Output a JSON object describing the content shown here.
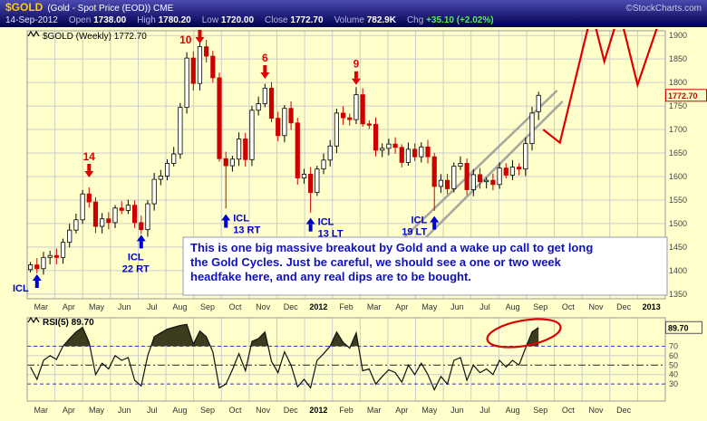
{
  "header": {
    "symbol": "$GOLD",
    "description": "(Gold - Spot Price (EOD)) CME",
    "credit": "©StockCharts.com",
    "date": "14-Sep-2012",
    "quote": [
      {
        "label": "Open",
        "value": "1738.00"
      },
      {
        "label": "High",
        "value": "1780.20"
      },
      {
        "label": "Low",
        "value": "1720.00"
      },
      {
        "label": "Close",
        "value": "1772.70"
      },
      {
        "label": "Volume",
        "value": "782.9K"
      },
      {
        "label": "Chg",
        "value": "+35.10 (+2.02%)"
      }
    ]
  },
  "price_panel": {
    "series_label": "$GOLD (Weekly) 1772.70",
    "last_price_label": "1772.70",
    "icl_corner_label": "ICL",
    "annotation_lines": [
      "This is one big massive breakout by Gold and a wake up call to get long",
      "the Gold Cycles.  Just be careful, we should see a one or two week",
      "headfake here, and any real dips are to be bought."
    ],
    "cycle_tops": [
      {
        "text": "14",
        "week": 9,
        "tip": 1598
      },
      {
        "text": "10",
        "week": 26,
        "tip": 1902,
        "label_pos": "left"
      },
      {
        "text": "6",
        "week": 36,
        "tip": 1808
      },
      {
        "text": "9",
        "week": 50,
        "tip": 1795
      }
    ],
    "cycle_bottoms": [
      {
        "lines": [
          "ICL",
          "22 RT"
        ],
        "week": 17,
        "tip": 1476,
        "label_pos": "below"
      },
      {
        "lines": [
          "ICL",
          "13 RT"
        ],
        "week": 30,
        "tip": 1520,
        "label_pos": "right"
      },
      {
        "lines": [
          "ICL",
          "13 LT"
        ],
        "week": 43,
        "tip": 1512,
        "label_pos": "right"
      },
      {
        "lines": [
          "ICL",
          "19 LT"
        ],
        "week": 62,
        "tip": 1516,
        "label_pos": "left"
      },
      {
        "lines": [],
        "week": 1,
        "tip": 1392,
        "label_pos": "none"
      }
    ]
  },
  "rsi_panel": {
    "label": "RSI(5) 89.70",
    "last_value_label": "89.70"
  },
  "chart_data": {
    "type": "candlestick",
    "title": "$GOLD (Weekly)",
    "symbol": "$GOLD",
    "timeframe": "Weekly",
    "last_close": 1772.7,
    "ohlc_last": {
      "date": "14-Sep-2012",
      "open": 1738.0,
      "high": 1780.2,
      "low": 1720.0,
      "close": 1772.7,
      "volume": "782.9K",
      "change": "+35.10 (+2.02%)"
    },
    "ylim": [
      1340,
      1910
    ],
    "yticks": [
      1350,
      1400,
      1450,
      1500,
      1550,
      1600,
      1650,
      1700,
      1750,
      1800,
      1850,
      1900
    ],
    "x_axis_months": [
      "Mar",
      "Apr",
      "May",
      "Jun",
      "Jul",
      "Aug",
      "Sep",
      "Oct",
      "Nov",
      "Dec",
      "2012",
      "Feb",
      "Mar",
      "Apr",
      "May",
      "Jun",
      "Jul",
      "Aug",
      "Sep",
      "Oct",
      "Nov",
      "Dec",
      "2013"
    ],
    "weekly_closes": [
      1412,
      1404,
      1428,
      1432,
      1428,
      1460,
      1486,
      1508,
      1563,
      1546,
      1494,
      1510,
      1502,
      1533,
      1528,
      1539,
      1502,
      1487,
      1542,
      1594,
      1601,
      1628,
      1648,
      1747,
      1852,
      1798,
      1876,
      1856,
      1810,
      1638,
      1623,
      1637,
      1680,
      1636,
      1741,
      1755,
      1788,
      1724,
      1687,
      1745,
      1714,
      1597,
      1605,
      1566,
      1616,
      1635,
      1665,
      1735,
      1725,
      1721,
      1774,
      1712,
      1711,
      1656,
      1660,
      1669,
      1662,
      1630,
      1658,
      1642,
      1663,
      1642,
      1579,
      1592,
      1574,
      1622,
      1628,
      1572,
      1604,
      1589,
      1592,
      1583,
      1618,
      1603,
      1620,
      1616,
      1670,
      1735,
      1772.7
    ],
    "candle_overrides": {
      "9": {
        "high": 1577
      },
      "17": {
        "low": 1478
      },
      "26": {
        "high": 1908
      },
      "30": {
        "low": 1532
      },
      "43": {
        "low": 1523
      },
      "50": {
        "high": 1790
      },
      "62": {
        "low": 1527
      },
      "78": {
        "open": 1738.0,
        "high": 1780.2,
        "low": 1720.0,
        "close": 1772.7
      }
    },
    "projection_red_line": [
      [
        18.6,
        1700
      ],
      [
        19.2,
        1672
      ],
      [
        20.35,
        1950
      ],
      [
        20.8,
        1845
      ],
      [
        21.35,
        1950
      ],
      [
        22.0,
        1795
      ],
      [
        23.3,
        2020
      ]
    ],
    "trend_channel": [
      [
        [
          12.7,
          1420
        ],
        [
          19.1,
          1783
        ]
      ],
      [
        [
          13.0,
          1390
        ],
        [
          19.3,
          1760
        ]
      ]
    ],
    "rsi": {
      "label": "RSI(5)",
      "period": 5,
      "last": 89.7,
      "ylim": [
        12,
        100
      ],
      "yticks": [
        30,
        40,
        50,
        60,
        70
      ],
      "overbought": 70,
      "midline": 50,
      "oversold": 30,
      "x_axis_months": [
        "Mar",
        "Apr",
        "May",
        "Jun",
        "Jul",
        "Aug",
        "Sep",
        "Oct",
        "Nov",
        "Dec",
        "2012",
        "Feb",
        "Mar",
        "Apr",
        "May",
        "Jun",
        "Jul",
        "Aug",
        "Sep",
        "Oct",
        "Nov",
        "Dec"
      ],
      "values": [
        48,
        35,
        55,
        60,
        56,
        70,
        78,
        85,
        90,
        74,
        40,
        52,
        46,
        60,
        55,
        58,
        34,
        28,
        60,
        80,
        84,
        88,
        90,
        92,
        93,
        72,
        86,
        80,
        64,
        26,
        30,
        45,
        62,
        44,
        75,
        78,
        85,
        54,
        42,
        64,
        50,
        27,
        35,
        26,
        55,
        62,
        70,
        85,
        74,
        68,
        84,
        44,
        46,
        30,
        38,
        45,
        42,
        32,
        50,
        40,
        52,
        40,
        24,
        38,
        30,
        55,
        58,
        34,
        50,
        42,
        46,
        40,
        55,
        48,
        55,
        50,
        68,
        85,
        89.7
      ]
    }
  }
}
